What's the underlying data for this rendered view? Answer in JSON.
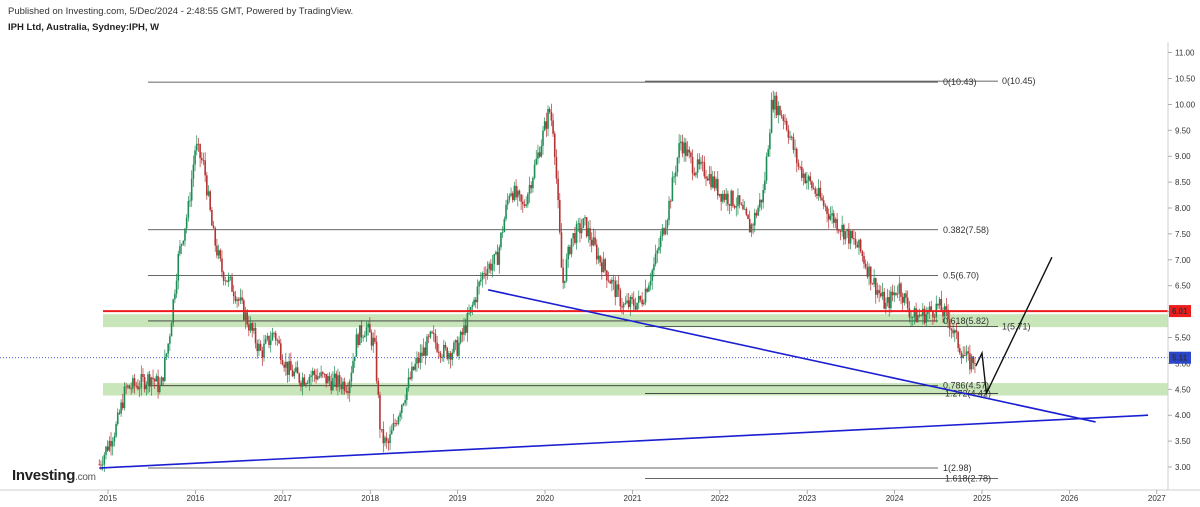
{
  "header": {
    "published": "Published on Investing.com, 5/Dec/2024 - 2:48:55 GMT, Powered by TradingView.",
    "symbol": "IPH Ltd, Australia, Sydney:IPH, W"
  },
  "logo": {
    "text": "Investing",
    "domain": ".com"
  },
  "colors": {
    "bull": "#1e8c55",
    "bear": "#b43232",
    "fib": "#333333",
    "trend": "#1a1fd1",
    "support": "#ee1c1c",
    "zone": "#b7dea3",
    "current": "#2a46c9",
    "projection": "#111111"
  },
  "chart_data": {
    "type": "candlestick",
    "title": "IPH Ltd, Australia, Sydney:IPH, W",
    "x_ticks": [
      "2015",
      "2016",
      "2017",
      "2018",
      "2019",
      "2020",
      "2021",
      "2022",
      "2023",
      "2024",
      "2025",
      "2026",
      "2027"
    ],
    "y_ticks": [
      "3.00",
      "3.50",
      "4.00",
      "4.50",
      "5.00",
      "5.50",
      "6.00",
      "6.50",
      "7.00",
      "7.50",
      "8.00",
      "8.50",
      "9.00",
      "9.50",
      "10.00",
      "10.50",
      "11.00"
    ],
    "ylim": [
      2.6,
      11.2
    ],
    "price_path": [
      [
        2014.9,
        3.05
      ],
      [
        2015.1,
        3.8
      ],
      [
        2015.2,
        4.5
      ],
      [
        2015.35,
        4.6
      ],
      [
        2015.5,
        4.75
      ],
      [
        2015.6,
        4.5
      ],
      [
        2015.7,
        5.5
      ],
      [
        2015.8,
        7.0
      ],
      [
        2015.92,
        8.0
      ],
      [
        2016.0,
        9.2
      ],
      [
        2016.1,
        8.8
      ],
      [
        2016.2,
        7.5
      ],
      [
        2016.3,
        6.8
      ],
      [
        2016.45,
        6.4
      ],
      [
        2016.6,
        5.8
      ],
      [
        2016.75,
        5.2
      ],
      [
        2016.9,
        5.6
      ],
      [
        2017.05,
        4.9
      ],
      [
        2017.2,
        4.7
      ],
      [
        2017.35,
        4.8
      ],
      [
        2017.55,
        4.65
      ],
      [
        2017.75,
        4.6
      ],
      [
        2017.85,
        5.5
      ],
      [
        2017.95,
        5.7
      ],
      [
        2018.05,
        5.35
      ],
      [
        2018.12,
        3.6
      ],
      [
        2018.2,
        3.4
      ],
      [
        2018.35,
        4.2
      ],
      [
        2018.5,
        4.9
      ],
      [
        2018.7,
        5.5
      ],
      [
        2018.85,
        5.2
      ],
      [
        2019.0,
        5.3
      ],
      [
        2019.15,
        6.0
      ],
      [
        2019.3,
        6.8
      ],
      [
        2019.45,
        7.0
      ],
      [
        2019.6,
        8.4
      ],
      [
        2019.75,
        8.0
      ],
      [
        2019.9,
        8.9
      ],
      [
        2020.05,
        9.9
      ],
      [
        2020.1,
        9.5
      ],
      [
        2020.2,
        6.5
      ],
      [
        2020.3,
        7.4
      ],
      [
        2020.45,
        7.7
      ],
      [
        2020.6,
        7.1
      ],
      [
        2020.75,
        6.6
      ],
      [
        2020.9,
        6.1
      ],
      [
        2021.1,
        6.2
      ],
      [
        2021.25,
        6.9
      ],
      [
        2021.4,
        7.9
      ],
      [
        2021.55,
        9.3
      ],
      [
        2021.7,
        8.8
      ],
      [
        2021.85,
        8.7
      ],
      [
        2022.0,
        8.3
      ],
      [
        2022.2,
        8.1
      ],
      [
        2022.35,
        7.6
      ],
      [
        2022.5,
        8.3
      ],
      [
        2022.6,
        10.1
      ],
      [
        2022.75,
        9.7
      ],
      [
        2022.9,
        8.8
      ],
      [
        2023.1,
        8.3
      ],
      [
        2023.25,
        7.9
      ],
      [
        2023.45,
        7.5
      ],
      [
        2023.6,
        7.2
      ],
      [
        2023.75,
        6.6
      ],
      [
        2023.9,
        6.1
      ],
      [
        2024.05,
        6.5
      ],
      [
        2024.2,
        5.9
      ],
      [
        2024.35,
        5.95
      ],
      [
        2024.5,
        6.1
      ],
      [
        2024.62,
        5.85
      ],
      [
        2024.72,
        5.4
      ],
      [
        2024.85,
        5.0
      ],
      [
        2024.93,
        5.11
      ]
    ],
    "current_price": "5.11",
    "support_level": "6.01",
    "fib_set_1": [
      {
        "label": "0(10.43)",
        "value": 10.43
      },
      {
        "label": "0.382(7.58)",
        "value": 7.58
      },
      {
        "label": "0.5(6.70)",
        "value": 6.7
      },
      {
        "label": "0.618(5.82)",
        "value": 5.82
      },
      {
        "label": "0.786(4.57)",
        "value": 4.57
      },
      {
        "label": "1(2.98)",
        "value": 2.98
      }
    ],
    "fib_set_2": [
      {
        "label": "0(10.45)",
        "value": 10.45
      },
      {
        "label": "1(5.71)",
        "value": 5.71
      },
      {
        "label": "1.272(4.42)",
        "value": 4.42
      },
      {
        "label": "1.618(2.78)",
        "value": 2.78
      }
    ],
    "zones": [
      [
        5.7,
        5.95
      ],
      [
        4.38,
        4.62
      ]
    ],
    "trendlines": [
      {
        "from": [
          2014.9,
          2.98
        ],
        "to": [
          2026.9,
          4.0
        ]
      },
      {
        "from": [
          2019.35,
          6.42
        ],
        "to": [
          2026.3,
          3.87
        ]
      }
    ],
    "projection": [
      [
        2024.93,
        4.95
      ],
      [
        2025.0,
        5.2
      ],
      [
        2025.05,
        4.42
      ],
      [
        2025.8,
        7.05
      ]
    ]
  }
}
